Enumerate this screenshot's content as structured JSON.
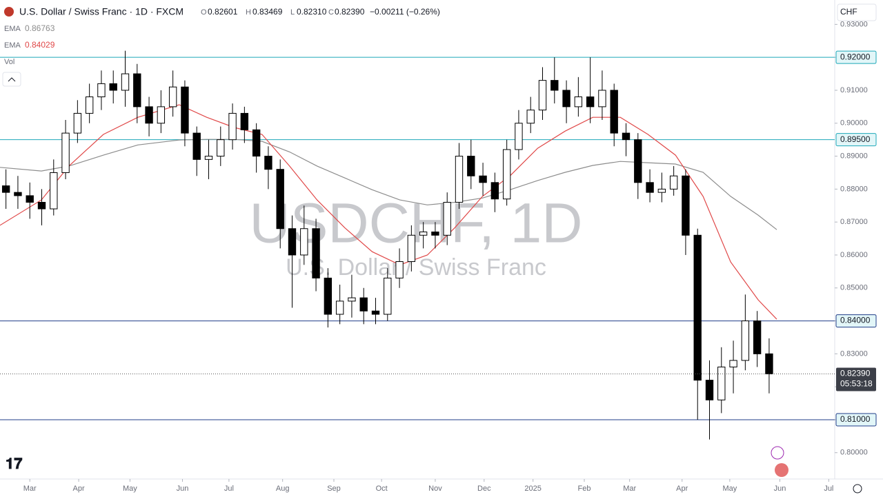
{
  "header": {
    "symbol": "U.S. Dollar / Swiss Franc · 1D · FXCM",
    "o_label": "O",
    "o": "0.82601",
    "h_label": "H",
    "h": "0.83469",
    "l_label": "L",
    "l": "0.82310",
    "c_label": "C",
    "c": "0.82390",
    "change": "−0.00211 (−0.26%)",
    "currency": "CHF",
    "watermark": "USDCHF, 1D",
    "watermark_sub": "U.S. Dollar / Swiss Franc",
    "vol": "Vol"
  },
  "chart_data": {
    "type": "candlestick",
    "x": [
      0.5,
      1.5,
      2.5,
      3.5,
      4.5,
      5.5,
      6.5,
      7.5,
      8.5,
      9.5,
      10.5,
      11.5,
      12.5,
      13.5,
      14.5,
      15.5,
      16.5,
      17.5,
      18.5,
      19.5,
      20.5,
      21.5,
      22.5,
      23.5,
      24.5,
      25.5,
      26.5,
      27.5,
      28.5,
      29.5,
      30.5,
      31.5,
      32.5,
      33.5,
      34.5,
      35.5,
      36.5,
      37.5,
      38.5,
      39.5,
      40.5,
      41.5,
      42.5,
      43.5,
      44.5,
      45.5,
      46.5,
      47.5,
      48.5,
      49.5,
      50.5,
      51.5,
      52.5,
      53.5,
      54.5,
      55.5,
      56.5,
      57.5,
      58.5,
      59.5,
      60.5,
      61.5,
      62.5,
      63.5,
      64.5
    ],
    "open": [
      0.881,
      0.879,
      0.878,
      0.876,
      0.874,
      0.885,
      0.897,
      0.903,
      0.908,
      0.912,
      0.91,
      0.915,
      0.905,
      0.9,
      0.905,
      0.911,
      0.897,
      0.889,
      0.89,
      0.895,
      0.903,
      0.898,
      0.89,
      0.886,
      0.868,
      0.86,
      0.868,
      0.853,
      0.842,
      0.846,
      0.847,
      0.843,
      0.842,
      0.853,
      0.858,
      0.866,
      0.867,
      0.866,
      0.876,
      0.89,
      0.884,
      0.882,
      0.877,
      0.892,
      0.9,
      0.904,
      0.913,
      0.91,
      0.905,
      0.908,
      0.905,
      0.91,
      0.897,
      0.895,
      0.882,
      0.879,
      0.88,
      0.884,
      0.866,
      0.822,
      0.816,
      0.826,
      0.828,
      0.84,
      0.83
    ],
    "high": [
      0.886,
      0.884,
      0.882,
      0.88,
      0.889,
      0.901,
      0.907,
      0.912,
      0.916,
      0.916,
      0.922,
      0.918,
      0.908,
      0.91,
      0.916,
      0.913,
      0.899,
      0.895,
      0.899,
      0.906,
      0.905,
      0.9,
      0.893,
      0.889,
      0.872,
      0.875,
      0.871,
      0.856,
      0.851,
      0.854,
      0.85,
      0.847,
      0.856,
      0.862,
      0.869,
      0.87,
      0.87,
      0.879,
      0.894,
      0.895,
      0.888,
      0.885,
      0.895,
      0.904,
      0.908,
      0.917,
      0.92,
      0.913,
      0.914,
      0.92,
      0.916,
      0.912,
      0.9,
      0.897,
      0.886,
      0.885,
      0.887,
      0.886,
      0.868,
      0.828,
      0.832,
      0.834,
      0.848,
      0.843,
      0.8347
    ],
    "low": [
      0.874,
      0.874,
      0.871,
      0.869,
      0.872,
      0.883,
      0.894,
      0.9,
      0.904,
      0.906,
      0.905,
      0.9,
      0.896,
      0.897,
      0.902,
      0.893,
      0.884,
      0.883,
      0.887,
      0.892,
      0.894,
      0.885,
      0.88,
      0.862,
      0.844,
      0.857,
      0.849,
      0.838,
      0.839,
      0.841,
      0.839,
      0.839,
      0.84,
      0.85,
      0.855,
      0.862,
      0.862,
      0.863,
      0.874,
      0.88,
      0.878,
      0.873,
      0.875,
      0.889,
      0.897,
      0.901,
      0.906,
      0.9,
      0.902,
      0.9,
      0.901,
      0.893,
      0.89,
      0.877,
      0.876,
      0.876,
      0.878,
      0.86,
      0.81,
      0.804,
      0.812,
      0.818,
      0.825,
      0.826,
      0.818
    ],
    "close": [
      0.879,
      0.878,
      0.876,
      0.874,
      0.885,
      0.897,
      0.903,
      0.908,
      0.912,
      0.91,
      0.915,
      0.905,
      0.9,
      0.905,
      0.911,
      0.897,
      0.889,
      0.89,
      0.895,
      0.903,
      0.898,
      0.89,
      0.886,
      0.868,
      0.86,
      0.868,
      0.853,
      0.842,
      0.846,
      0.847,
      0.843,
      0.842,
      0.853,
      0.858,
      0.866,
      0.867,
      0.866,
      0.876,
      0.89,
      0.884,
      0.882,
      0.877,
      0.892,
      0.9,
      0.904,
      0.913,
      0.91,
      0.905,
      0.908,
      0.905,
      0.91,
      0.897,
      0.895,
      0.882,
      0.879,
      0.88,
      0.884,
      0.866,
      0.822,
      0.816,
      0.826,
      0.828,
      0.84,
      0.83,
      0.8239
    ],
    "up_color": "#ffffff",
    "down_color": "#000000",
    "series": [
      {
        "name": "EMA",
        "value_label": "0.86763",
        "color": "#8c8c8c",
        "x": [
          0,
          3.47,
          5.78,
          8.67,
          11.56,
          15.03,
          17.34,
          19.65,
          21.97,
          24.28,
          26.59,
          28.9,
          31.21,
          33.53,
          35.84,
          38.15,
          40.46,
          42.77,
          45.09,
          47.4,
          49.71,
          52.02,
          54.34,
          56.65,
          58.96,
          61.27,
          63.58,
          65.14
        ],
        "values": [
          0.8866,
          0.8855,
          0.887,
          0.8903,
          0.8934,
          0.8949,
          0.8951,
          0.8951,
          0.8945,
          0.8913,
          0.887,
          0.8834,
          0.8798,
          0.8767,
          0.8752,
          0.876,
          0.8773,
          0.8798,
          0.8826,
          0.8851,
          0.8872,
          0.8884,
          0.888,
          0.8876,
          0.8851,
          0.8778,
          0.8721,
          0.8677
        ]
      },
      {
        "name": "EMA",
        "value_label": "0.84029",
        "color": "#e04848",
        "x": [
          0,
          3.47,
          5.78,
          8.67,
          11.56,
          15.03,
          17.34,
          19.65,
          21.97,
          24.28,
          26.59,
          28.9,
          31.21,
          33.53,
          35.84,
          38.15,
          40.46,
          42.77,
          45.09,
          47.4,
          49.71,
          52.02,
          54.34,
          56.65,
          58.96,
          61.27,
          63.58,
          65.14
        ],
        "values": [
          0.869,
          0.8767,
          0.887,
          0.8966,
          0.9018,
          0.9056,
          0.9018,
          0.8987,
          0.8966,
          0.887,
          0.8767,
          0.8683,
          0.861,
          0.857,
          0.86,
          0.8683,
          0.8778,
          0.884,
          0.8924,
          0.8976,
          0.9018,
          0.9018,
          0.8966,
          0.8903,
          0.8778,
          0.8579,
          0.8464,
          0.8405
        ]
      }
    ],
    "levels": [
      {
        "value": 0.92,
        "label": "0.92000",
        "color": "#1ba7b8"
      },
      {
        "value": 0.895,
        "label": "0.89500",
        "color": "#1ba7b8"
      },
      {
        "value": 0.84,
        "label": "0.84000",
        "color": "#1f3c88"
      },
      {
        "value": 0.81,
        "label": "0.81000",
        "color": "#1f3c88"
      }
    ],
    "last_price": {
      "value": 0.8239,
      "label": "0.82390"
    },
    "countdown": "05:53:18",
    "ylim": [
      0.792,
      0.9374
    ],
    "yticks": [
      {
        "value": 0.8,
        "label": "0.80000"
      },
      {
        "value": 0.81,
        "label": "0.81000"
      },
      {
        "value": 0.82,
        "label": "0.82000"
      },
      {
        "value": 0.83,
        "label": "0.83000"
      },
      {
        "value": 0.84,
        "label": "0.84000"
      },
      {
        "value": 0.85,
        "label": "0.85000"
      },
      {
        "value": 0.86,
        "label": "0.86000"
      },
      {
        "value": 0.87,
        "label": "0.87000"
      },
      {
        "value": 0.88,
        "label": "0.88000"
      },
      {
        "value": 0.89,
        "label": "0.89000"
      },
      {
        "value": 0.9,
        "label": "0.90000"
      },
      {
        "value": 0.91,
        "label": "0.91000"
      },
      {
        "value": 0.92,
        "label": "0.92000"
      },
      {
        "value": 0.93,
        "label": "0.93000"
      }
    ],
    "xlim": [
      0,
      70
    ],
    "xticks": [
      {
        "value": 2.5,
        "label": "Mar"
      },
      {
        "value": 6.6,
        "label": "Apr"
      },
      {
        "value": 10.9,
        "label": "May"
      },
      {
        "value": 15.3,
        "label": "Jun"
      },
      {
        "value": 19.2,
        "label": "Jul"
      },
      {
        "value": 23.7,
        "label": "Aug"
      },
      {
        "value": 28.0,
        "label": "Sep"
      },
      {
        "value": 32.0,
        "label": "Oct"
      },
      {
        "value": 36.5,
        "label": "Nov"
      },
      {
        "value": 40.6,
        "label": "Dec"
      },
      {
        "value": 44.7,
        "label": "2025"
      },
      {
        "value": 49.0,
        "label": "Feb"
      },
      {
        "value": 52.8,
        "label": "Mar"
      },
      {
        "value": 57.2,
        "label": "Apr"
      },
      {
        "value": 61.2,
        "label": "May"
      },
      {
        "value": 65.4,
        "label": "Jun"
      },
      {
        "value": 69.5,
        "label": "Jul"
      }
    ]
  }
}
